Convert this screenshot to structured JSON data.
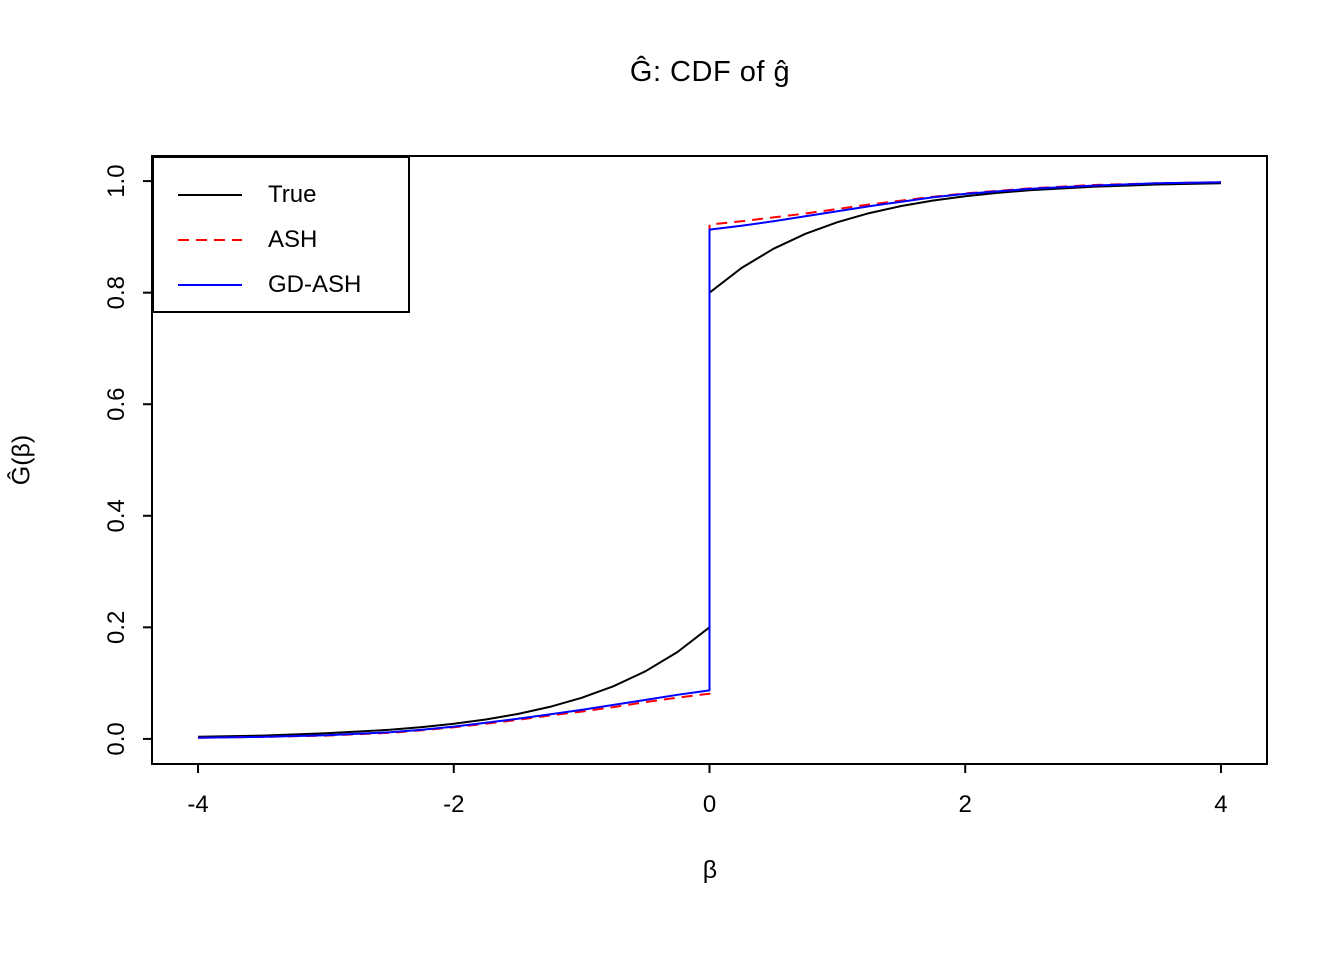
{
  "chart_data": {
    "type": "line",
    "title": "Ĝ: CDF of ĝ",
    "xlabel": "β",
    "ylabel": "Ĝ(β)",
    "xlim": [
      -4.36,
      4.36
    ],
    "ylim": [
      -0.045,
      1.045
    ],
    "grid": false,
    "legend_position": "top-left",
    "x_ticks": [
      {
        "value": -4,
        "label": "-4"
      },
      {
        "value": -2,
        "label": "-2"
      },
      {
        "value": 0,
        "label": "0"
      },
      {
        "value": 2,
        "label": "2"
      },
      {
        "value": 4,
        "label": "4"
      }
    ],
    "y_ticks": [
      {
        "value": 0.0,
        "label": "0.0"
      },
      {
        "value": 0.2,
        "label": "0.2"
      },
      {
        "value": 0.4,
        "label": "0.4"
      },
      {
        "value": 0.6,
        "label": "0.6"
      },
      {
        "value": 0.8,
        "label": "0.8"
      },
      {
        "value": 1.0,
        "label": "1.0"
      }
    ],
    "series": [
      {
        "name": "True",
        "color": "#000000",
        "dash": "solid",
        "points": [
          [
            -4,
            0.0037
          ],
          [
            -3.5,
            0.006
          ],
          [
            -3,
            0.01
          ],
          [
            -2.5,
            0.0164
          ],
          [
            -2.25,
            0.0211
          ],
          [
            -2,
            0.0271
          ],
          [
            -1.75,
            0.0348
          ],
          [
            -1.5,
            0.0446
          ],
          [
            -1.25,
            0.0573
          ],
          [
            -1,
            0.0736
          ],
          [
            -0.75,
            0.0945
          ],
          [
            -0.5,
            0.1213
          ],
          [
            -0.25,
            0.1558
          ],
          [
            0,
            0.2
          ],
          [
            0,
            0.8
          ],
          [
            0.25,
            0.8442
          ],
          [
            0.5,
            0.8787
          ],
          [
            0.75,
            0.9055
          ],
          [
            1,
            0.9264
          ],
          [
            1.25,
            0.9427
          ],
          [
            1.5,
            0.9554
          ],
          [
            1.75,
            0.9652
          ],
          [
            2,
            0.9729
          ],
          [
            2.25,
            0.9789
          ],
          [
            2.5,
            0.9836
          ],
          [
            3,
            0.99
          ],
          [
            3.5,
            0.9939
          ],
          [
            4,
            0.9963
          ]
        ]
      },
      {
        "name": "ASH",
        "color": "#FF0000",
        "dash": "dashed",
        "points": [
          [
            -4,
            0.002
          ],
          [
            -3.5,
            0.0035
          ],
          [
            -3,
            0.006
          ],
          [
            -2.5,
            0.011
          ],
          [
            -2.25,
            0.0155
          ],
          [
            -2,
            0.021
          ],
          [
            -1.75,
            0.027
          ],
          [
            -1.5,
            0.034
          ],
          [
            -1.25,
            0.042
          ],
          [
            -1,
            0.049
          ],
          [
            -0.75,
            0.057
          ],
          [
            -0.5,
            0.066
          ],
          [
            -0.25,
            0.074
          ],
          [
            0,
            0.081
          ],
          [
            0,
            0.922
          ],
          [
            0.25,
            0.928
          ],
          [
            0.5,
            0.935
          ],
          [
            0.75,
            0.942
          ],
          [
            1,
            0.95
          ],
          [
            1.25,
            0.958
          ],
          [
            1.5,
            0.965
          ],
          [
            1.75,
            0.972
          ],
          [
            2,
            0.978
          ],
          [
            2.5,
            0.987
          ],
          [
            3,
            0.993
          ],
          [
            3.5,
            0.996
          ],
          [
            4,
            0.998
          ]
        ]
      },
      {
        "name": "GD-ASH",
        "color": "#0000FF",
        "dash": "solid",
        "points": [
          [
            -4,
            0.002
          ],
          [
            -3.5,
            0.0036
          ],
          [
            -3,
            0.0065
          ],
          [
            -2.5,
            0.012
          ],
          [
            -2.25,
            0.0165
          ],
          [
            -2,
            0.022
          ],
          [
            -1.75,
            0.029
          ],
          [
            -1.5,
            0.036
          ],
          [
            -1.25,
            0.044
          ],
          [
            -1,
            0.052
          ],
          [
            -0.75,
            0.061
          ],
          [
            -0.5,
            0.07
          ],
          [
            -0.25,
            0.079
          ],
          [
            0,
            0.087
          ],
          [
            0,
            0.913
          ],
          [
            0.25,
            0.92
          ],
          [
            0.5,
            0.928
          ],
          [
            0.75,
            0.937
          ],
          [
            1,
            0.946
          ],
          [
            1.25,
            0.955
          ],
          [
            1.5,
            0.963
          ],
          [
            1.75,
            0.971
          ],
          [
            2,
            0.977
          ],
          [
            2.5,
            0.986
          ],
          [
            3,
            0.992
          ],
          [
            3.5,
            0.996
          ],
          [
            4,
            0.998
          ]
        ]
      }
    ]
  }
}
